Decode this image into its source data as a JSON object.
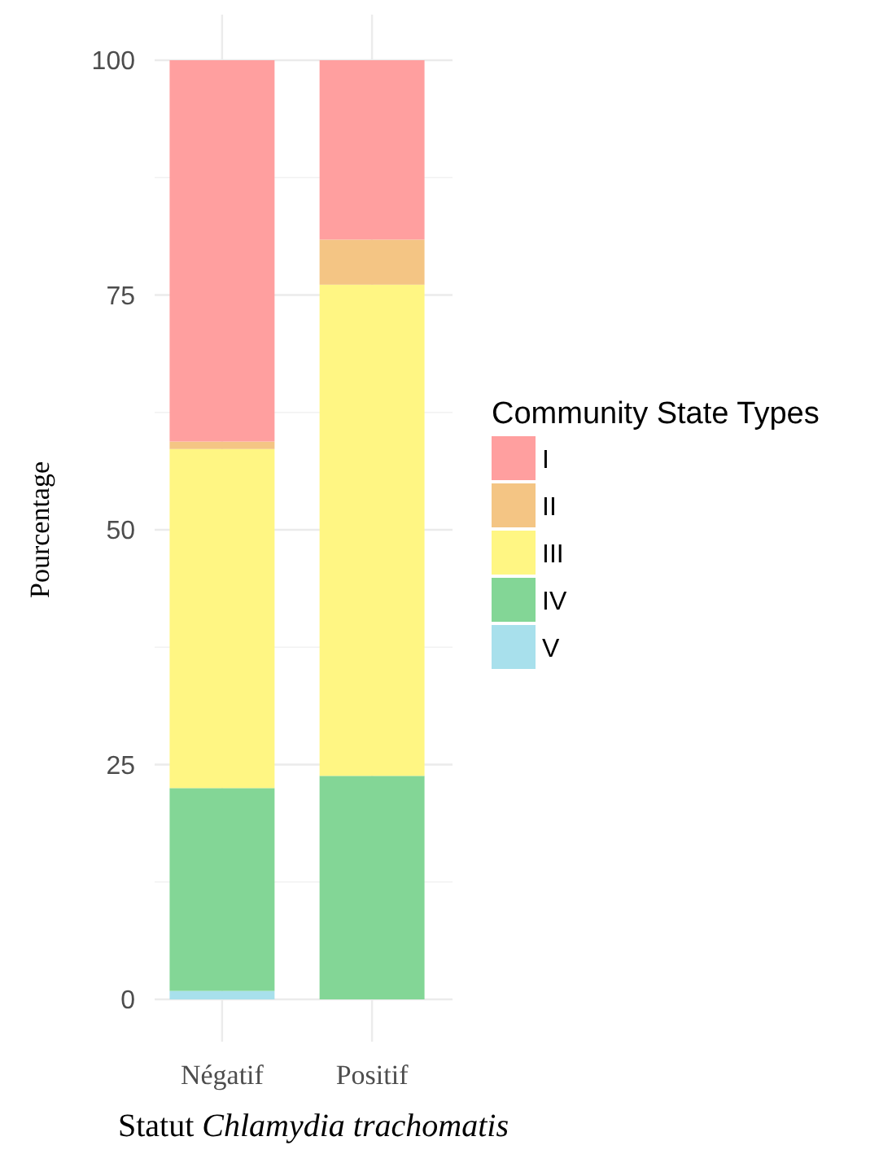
{
  "chart_data": {
    "type": "bar",
    "stacked": true,
    "xlabel": "Statut Chlamydia trachomatis",
    "ylabel": "Pourcentage",
    "legend_title": "Community State Types",
    "legend": "right",
    "grid": true,
    "categories": [
      "Négatif",
      "Positif"
    ],
    "ylim": [
      0,
      100
    ],
    "yticks": [
      0,
      25,
      50,
      75,
      100
    ],
    "series": [
      {
        "name": "V",
        "color": "#a8e0ec",
        "values": [
          0.9,
          0
        ]
      },
      {
        "name": "IV",
        "color": "#83d696",
        "values": [
          21.6,
          23.8
        ]
      },
      {
        "name": "III",
        "color": "#fff683",
        "values": [
          36.1,
          52.3
        ]
      },
      {
        "name": "II",
        "color": "#f4c584",
        "values": [
          0.8,
          4.8
        ]
      },
      {
        "name": "I",
        "color": "#ff9f9f",
        "values": [
          40.6,
          19.1
        ]
      }
    ]
  }
}
